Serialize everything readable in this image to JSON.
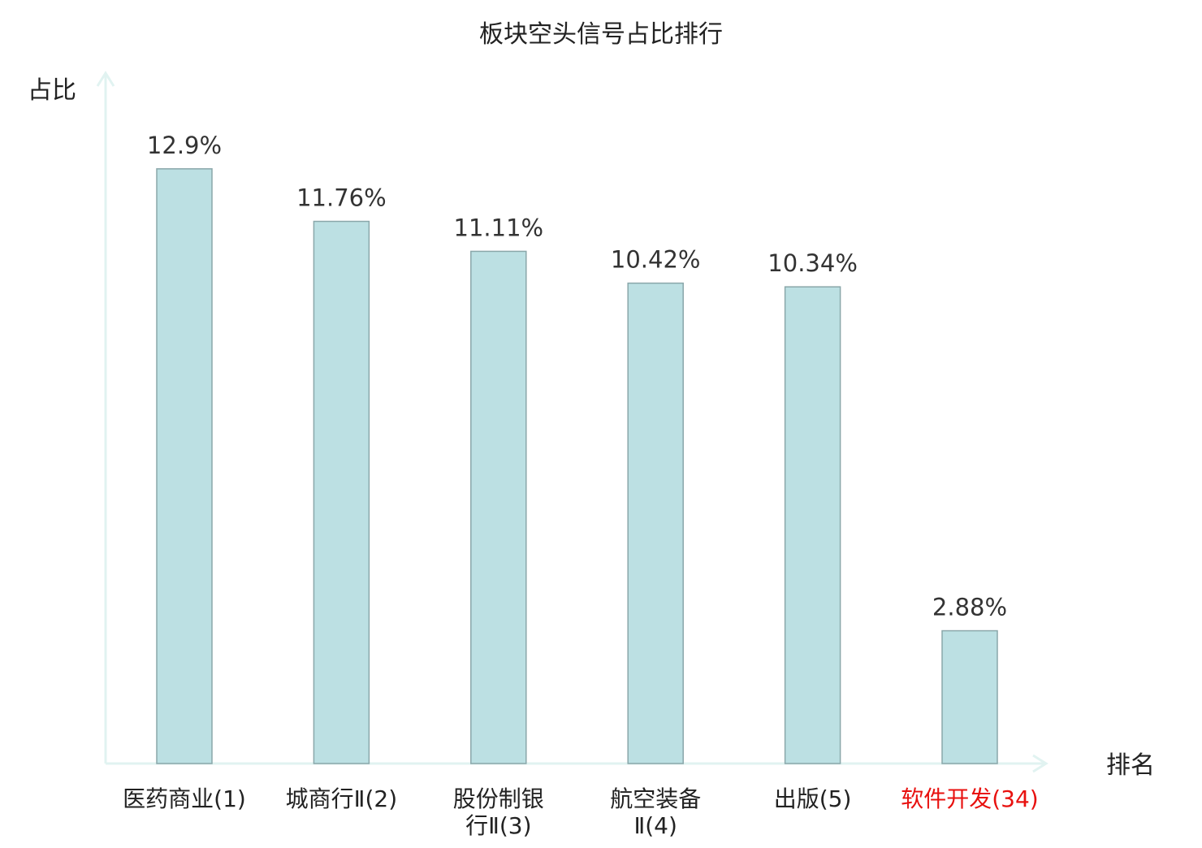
{
  "chart_data": {
    "type": "bar",
    "title": "板块空头信号占比排行",
    "ylabel": "占比",
    "xlabel": "排名",
    "categories": [
      [
        "医药商业(1)"
      ],
      [
        "城商行Ⅱ(2)"
      ],
      [
        "股份制银",
        "行Ⅱ(3)"
      ],
      [
        "航空装备",
        "Ⅱ(4)"
      ],
      [
        "出版(5)"
      ],
      [
        "软件开发(34)"
      ]
    ],
    "values": [
      12.9,
      11.76,
      11.11,
      10.42,
      10.34,
      2.88
    ],
    "value_labels": [
      "12.9%",
      "11.76%",
      "11.11%",
      "10.42%",
      "10.34%",
      "2.88%"
    ],
    "highlight_index": 5,
    "ylim": [
      0,
      14.8
    ],
    "grid": false,
    "colors": {
      "bar_fill": "#bce0e3",
      "bar_stroke": "#8aa7aa",
      "axis": "#e1f3f1",
      "text": "#333333",
      "highlight_text": "#e8110f"
    }
  }
}
